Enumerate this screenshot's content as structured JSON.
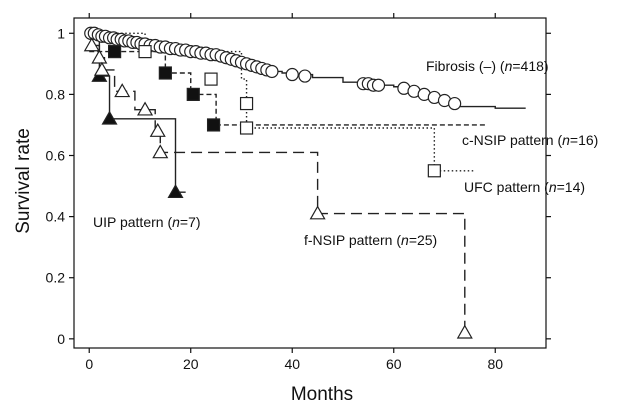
{
  "chart_data": {
    "type": "line",
    "subtype": "kaplan-meier-step",
    "title": "",
    "xlabel": "Months",
    "ylabel": "Survival rate",
    "xlim": [
      -3,
      90
    ],
    "ylim": [
      -0.03,
      1.05
    ],
    "x_ticks": [
      0,
      20,
      40,
      60,
      80
    ],
    "x_tick_labels": [
      "0",
      "20",
      "40",
      "60",
      "80"
    ],
    "y_ticks": [
      0,
      0.2,
      0.4,
      0.6,
      0.8,
      1
    ],
    "y_tick_labels": [
      "0",
      "0.2",
      "0.4",
      "0.6",
      "0.8",
      "1"
    ],
    "grid": false,
    "legend": "none (inline labels)",
    "series": [
      {
        "name": "Fibrosis (–) (n=418)",
        "label_parts": [
          "Fibrosis (–) (",
          "n",
          "=418)"
        ],
        "line_style": "solid",
        "marker": "open-circle",
        "step_x": [
          0,
          2,
          4,
          6,
          8,
          10,
          12,
          14,
          16,
          18,
          20,
          22,
          24,
          26,
          28,
          30,
          32,
          34,
          36,
          38,
          40,
          44,
          50,
          56,
          60,
          62,
          64,
          66,
          68,
          70,
          72,
          80,
          86
        ],
        "step_y": [
          1.0,
          0.99,
          0.985,
          0.98,
          0.975,
          0.97,
          0.965,
          0.96,
          0.955,
          0.95,
          0.945,
          0.94,
          0.935,
          0.925,
          0.915,
          0.905,
          0.895,
          0.885,
          0.875,
          0.87,
          0.865,
          0.855,
          0.84,
          0.83,
          0.825,
          0.82,
          0.81,
          0.8,
          0.79,
          0.78,
          0.76,
          0.755,
          0.755
        ],
        "markers": [
          [
            0.3,
            1.0
          ],
          [
            1.0,
            1.0
          ],
          [
            1.8,
            0.995
          ],
          [
            2.5,
            0.99
          ],
          [
            3.2,
            0.99
          ],
          [
            4.0,
            0.985
          ],
          [
            4.8,
            0.985
          ],
          [
            5.5,
            0.98
          ],
          [
            6.3,
            0.98
          ],
          [
            7.0,
            0.975
          ],
          [
            7.8,
            0.975
          ],
          [
            8.6,
            0.97
          ],
          [
            9.4,
            0.97
          ],
          [
            10.2,
            0.965
          ],
          [
            11.0,
            0.965
          ],
          [
            12.0,
            0.96
          ],
          [
            13.0,
            0.96
          ],
          [
            14.0,
            0.955
          ],
          [
            15.0,
            0.955
          ],
          [
            16.0,
            0.95
          ],
          [
            17.0,
            0.95
          ],
          [
            18.0,
            0.945
          ],
          [
            19.0,
            0.945
          ],
          [
            20.0,
            0.94
          ],
          [
            21.0,
            0.94
          ],
          [
            22.0,
            0.935
          ],
          [
            23.0,
            0.935
          ],
          [
            24.0,
            0.93
          ],
          [
            25.0,
            0.93
          ],
          [
            26.0,
            0.925
          ],
          [
            27.0,
            0.92
          ],
          [
            28.0,
            0.915
          ],
          [
            29.0,
            0.91
          ],
          [
            30.0,
            0.905
          ],
          [
            31.0,
            0.9
          ],
          [
            32.0,
            0.895
          ],
          [
            33.0,
            0.89
          ],
          [
            34.0,
            0.885
          ],
          [
            35.0,
            0.88
          ],
          [
            36.0,
            0.875
          ],
          [
            40.0,
            0.865
          ],
          [
            42.5,
            0.86
          ],
          [
            54.0,
            0.835
          ],
          [
            55.0,
            0.835
          ],
          [
            56.0,
            0.83
          ],
          [
            57.0,
            0.83
          ],
          [
            62.0,
            0.82
          ],
          [
            64.0,
            0.81
          ],
          [
            66.0,
            0.8
          ],
          [
            68.0,
            0.79
          ],
          [
            70.0,
            0.78
          ],
          [
            72.0,
            0.77
          ]
        ]
      },
      {
        "name": "c-NSIP pattern (n=16)",
        "label_parts": [
          "c-NSIP pattern (",
          "n",
          "=16)"
        ],
        "line_style": "short-dash",
        "marker": "filled-square",
        "step_x": [
          0,
          5,
          15,
          20,
          25,
          78
        ],
        "step_y": [
          0.94,
          0.94,
          0.87,
          0.8,
          0.7,
          0.7
        ],
        "markers": [
          [
            5.0,
            0.94
          ],
          [
            15.0,
            0.87
          ],
          [
            20.5,
            0.8
          ],
          [
            24.5,
            0.7
          ]
        ]
      },
      {
        "name": "UFC pattern (n=14)",
        "label_parts": [
          "UFC pattern (",
          "n",
          "=14)"
        ],
        "line_style": "dotted",
        "marker": "open-square",
        "step_x": [
          0,
          11,
          30,
          31,
          68,
          76
        ],
        "step_y": [
          1.0,
          0.94,
          0.85,
          0.69,
          0.55,
          0.55
        ],
        "markers": [
          [
            11.0,
            0.94
          ],
          [
            24.0,
            0.85
          ],
          [
            31.0,
            0.77
          ],
          [
            31.0,
            0.69
          ],
          [
            68.0,
            0.55
          ]
        ]
      },
      {
        "name": "UIP pattern (n=7)",
        "label_parts": [
          "UIP pattern (",
          "n",
          "=7)"
        ],
        "line_style": "solid",
        "marker": "filled-triangle",
        "step_x": [
          0,
          2,
          4,
          17,
          19
        ],
        "step_y": [
          1.0,
          0.86,
          0.72,
          0.48,
          0.48
        ],
        "markers": [
          [
            2.0,
            0.86
          ],
          [
            4.0,
            0.72
          ],
          [
            17.0,
            0.48
          ]
        ]
      },
      {
        "name": "f-NSIP pattern (n=25)",
        "label_parts": [
          "f-NSIP pattern (",
          "n",
          "=25)"
        ],
        "line_style": "long-dash",
        "marker": "open-triangle",
        "step_x": [
          0,
          1,
          2,
          3,
          5,
          9,
          13,
          14,
          45,
          74
        ],
        "step_y": [
          1.0,
          0.96,
          0.92,
          0.88,
          0.81,
          0.75,
          0.68,
          0.61,
          0.41,
          0.02
        ],
        "markers": [
          [
            0.5,
            0.96
          ],
          [
            2.0,
            0.92
          ],
          [
            2.5,
            0.88
          ],
          [
            6.5,
            0.81
          ],
          [
            11.0,
            0.75
          ],
          [
            13.5,
            0.68
          ],
          [
            14.0,
            0.61
          ],
          [
            45.0,
            0.41
          ],
          [
            74.0,
            0.02
          ]
        ]
      }
    ]
  }
}
